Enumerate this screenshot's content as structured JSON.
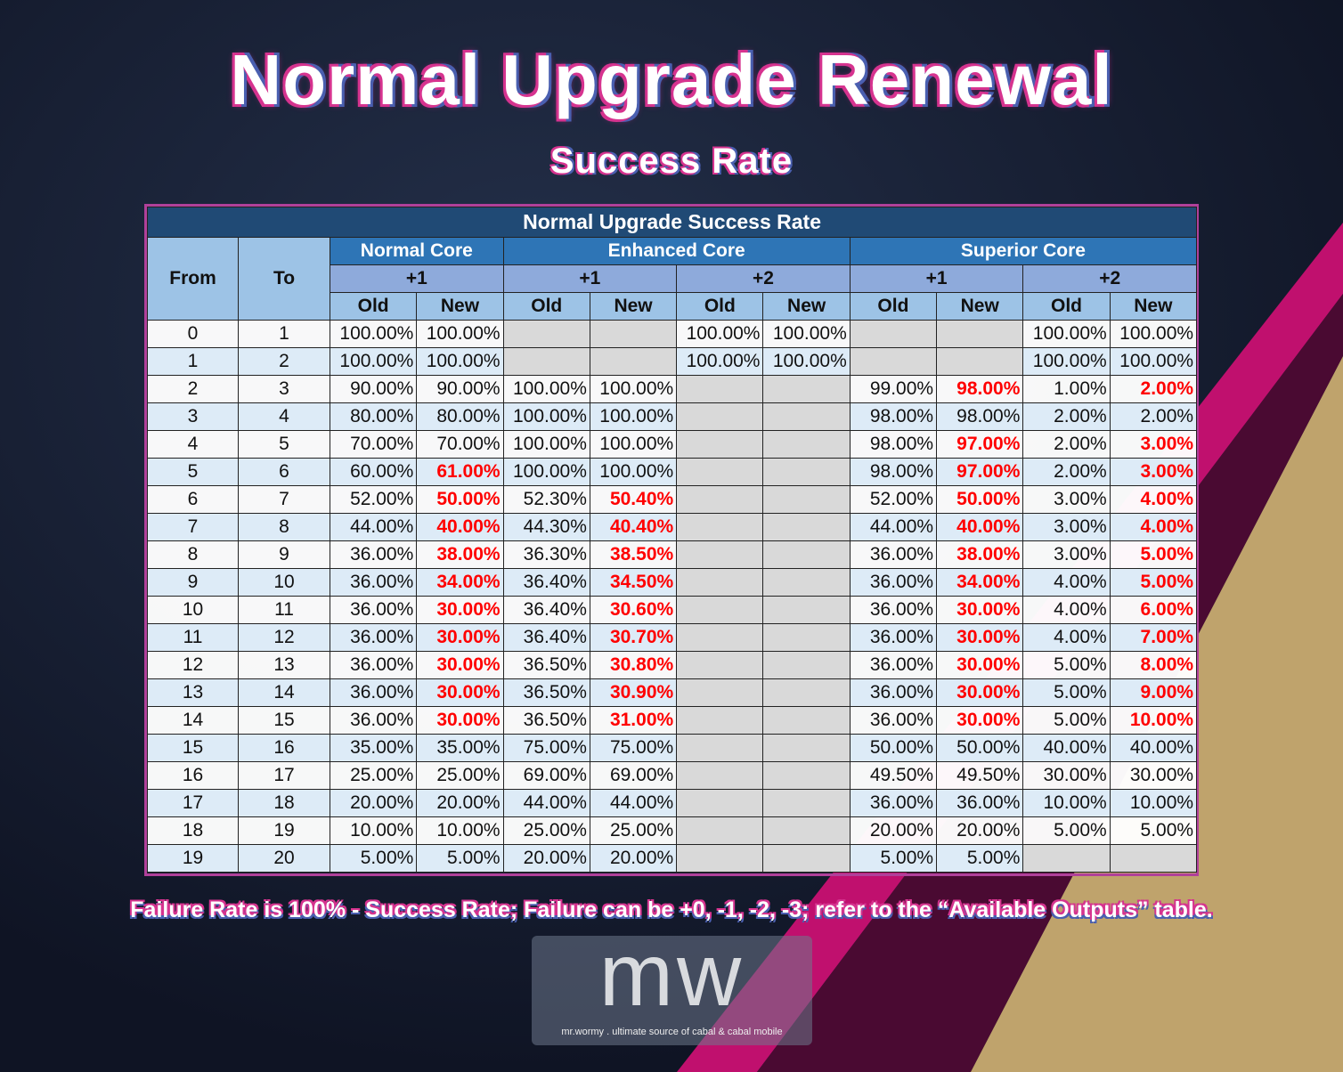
{
  "header": {
    "title": "Normal Upgrade Renewal",
    "subtitle": "Success Rate"
  },
  "table": {
    "title": "Normal Upgrade Success Rate",
    "col_from": "From",
    "col_to": "To",
    "cores": [
      "Normal Core",
      "Enhanced Core",
      "Superior Core"
    ],
    "levels": [
      "+1",
      "+1",
      "+2",
      "+1",
      "+2"
    ],
    "old_label": "Old",
    "new_label": "New",
    "rows": [
      {
        "from": "0",
        "to": "1",
        "cells": [
          [
            "100.00%",
            0
          ],
          [
            "100.00%",
            0
          ],
          null,
          null,
          [
            "100.00%",
            0
          ],
          [
            "100.00%",
            0
          ],
          null,
          null,
          [
            "100.00%",
            0
          ],
          [
            "100.00%",
            0
          ]
        ]
      },
      {
        "from": "1",
        "to": "2",
        "cells": [
          [
            "100.00%",
            0
          ],
          [
            "100.00%",
            0
          ],
          null,
          null,
          [
            "100.00%",
            0
          ],
          [
            "100.00%",
            0
          ],
          null,
          null,
          [
            "100.00%",
            0
          ],
          [
            "100.00%",
            0
          ]
        ]
      },
      {
        "from": "2",
        "to": "3",
        "cells": [
          [
            "90.00%",
            0
          ],
          [
            "90.00%",
            0
          ],
          [
            "100.00%",
            0
          ],
          [
            "100.00%",
            0
          ],
          null,
          null,
          [
            "99.00%",
            0
          ],
          [
            "98.00%",
            1
          ],
          [
            "1.00%",
            0
          ],
          [
            "2.00%",
            1
          ]
        ]
      },
      {
        "from": "3",
        "to": "4",
        "cells": [
          [
            "80.00%",
            0
          ],
          [
            "80.00%",
            0
          ],
          [
            "100.00%",
            0
          ],
          [
            "100.00%",
            0
          ],
          null,
          null,
          [
            "98.00%",
            0
          ],
          [
            "98.00%",
            0
          ],
          [
            "2.00%",
            0
          ],
          [
            "2.00%",
            0
          ]
        ]
      },
      {
        "from": "4",
        "to": "5",
        "cells": [
          [
            "70.00%",
            0
          ],
          [
            "70.00%",
            0
          ],
          [
            "100.00%",
            0
          ],
          [
            "100.00%",
            0
          ],
          null,
          null,
          [
            "98.00%",
            0
          ],
          [
            "97.00%",
            1
          ],
          [
            "2.00%",
            0
          ],
          [
            "3.00%",
            1
          ]
        ]
      },
      {
        "from": "5",
        "to": "6",
        "cells": [
          [
            "60.00%",
            0
          ],
          [
            "61.00%",
            1
          ],
          [
            "100.00%",
            0
          ],
          [
            "100.00%",
            0
          ],
          null,
          null,
          [
            "98.00%",
            0
          ],
          [
            "97.00%",
            1
          ],
          [
            "2.00%",
            0
          ],
          [
            "3.00%",
            1
          ]
        ]
      },
      {
        "from": "6",
        "to": "7",
        "cells": [
          [
            "52.00%",
            0
          ],
          [
            "50.00%",
            1
          ],
          [
            "52.30%",
            0
          ],
          [
            "50.40%",
            1
          ],
          null,
          null,
          [
            "52.00%",
            0
          ],
          [
            "50.00%",
            1
          ],
          [
            "3.00%",
            0
          ],
          [
            "4.00%",
            1
          ]
        ]
      },
      {
        "from": "7",
        "to": "8",
        "cells": [
          [
            "44.00%",
            0
          ],
          [
            "40.00%",
            1
          ],
          [
            "44.30%",
            0
          ],
          [
            "40.40%",
            1
          ],
          null,
          null,
          [
            "44.00%",
            0
          ],
          [
            "40.00%",
            1
          ],
          [
            "3.00%",
            0
          ],
          [
            "4.00%",
            1
          ]
        ]
      },
      {
        "from": "8",
        "to": "9",
        "cells": [
          [
            "36.00%",
            0
          ],
          [
            "38.00%",
            1
          ],
          [
            "36.30%",
            0
          ],
          [
            "38.50%",
            1
          ],
          null,
          null,
          [
            "36.00%",
            0
          ],
          [
            "38.00%",
            1
          ],
          [
            "3.00%",
            0
          ],
          [
            "5.00%",
            1
          ]
        ]
      },
      {
        "from": "9",
        "to": "10",
        "cells": [
          [
            "36.00%",
            0
          ],
          [
            "34.00%",
            1
          ],
          [
            "36.40%",
            0
          ],
          [
            "34.50%",
            1
          ],
          null,
          null,
          [
            "36.00%",
            0
          ],
          [
            "34.00%",
            1
          ],
          [
            "4.00%",
            0
          ],
          [
            "5.00%",
            1
          ]
        ]
      },
      {
        "from": "10",
        "to": "11",
        "cells": [
          [
            "36.00%",
            0
          ],
          [
            "30.00%",
            1
          ],
          [
            "36.40%",
            0
          ],
          [
            "30.60%",
            1
          ],
          null,
          null,
          [
            "36.00%",
            0
          ],
          [
            "30.00%",
            1
          ],
          [
            "4.00%",
            0
          ],
          [
            "6.00%",
            1
          ]
        ]
      },
      {
        "from": "11",
        "to": "12",
        "cells": [
          [
            "36.00%",
            0
          ],
          [
            "30.00%",
            1
          ],
          [
            "36.40%",
            0
          ],
          [
            "30.70%",
            1
          ],
          null,
          null,
          [
            "36.00%",
            0
          ],
          [
            "30.00%",
            1
          ],
          [
            "4.00%",
            0
          ],
          [
            "7.00%",
            1
          ]
        ]
      },
      {
        "from": "12",
        "to": "13",
        "cells": [
          [
            "36.00%",
            0
          ],
          [
            "30.00%",
            1
          ],
          [
            "36.50%",
            0
          ],
          [
            "30.80%",
            1
          ],
          null,
          null,
          [
            "36.00%",
            0
          ],
          [
            "30.00%",
            1
          ],
          [
            "5.00%",
            0
          ],
          [
            "8.00%",
            1
          ]
        ]
      },
      {
        "from": "13",
        "to": "14",
        "cells": [
          [
            "36.00%",
            0
          ],
          [
            "30.00%",
            1
          ],
          [
            "36.50%",
            0
          ],
          [
            "30.90%",
            1
          ],
          null,
          null,
          [
            "36.00%",
            0
          ],
          [
            "30.00%",
            1
          ],
          [
            "5.00%",
            0
          ],
          [
            "9.00%",
            1
          ]
        ]
      },
      {
        "from": "14",
        "to": "15",
        "cells": [
          [
            "36.00%",
            0
          ],
          [
            "30.00%",
            1
          ],
          [
            "36.50%",
            0
          ],
          [
            "31.00%",
            1
          ],
          null,
          null,
          [
            "36.00%",
            0
          ],
          [
            "30.00%",
            1
          ],
          [
            "5.00%",
            0
          ],
          [
            "10.00%",
            1
          ]
        ]
      },
      {
        "from": "15",
        "to": "16",
        "cells": [
          [
            "35.00%",
            0
          ],
          [
            "35.00%",
            0
          ],
          [
            "75.00%",
            0
          ],
          [
            "75.00%",
            0
          ],
          null,
          null,
          [
            "50.00%",
            0
          ],
          [
            "50.00%",
            0
          ],
          [
            "40.00%",
            0
          ],
          [
            "40.00%",
            0
          ]
        ]
      },
      {
        "from": "16",
        "to": "17",
        "cells": [
          [
            "25.00%",
            0
          ],
          [
            "25.00%",
            0
          ],
          [
            "69.00%",
            0
          ],
          [
            "69.00%",
            0
          ],
          null,
          null,
          [
            "49.50%",
            0
          ],
          [
            "49.50%",
            0
          ],
          [
            "30.00%",
            0
          ],
          [
            "30.00%",
            0
          ]
        ]
      },
      {
        "from": "17",
        "to": "18",
        "cells": [
          [
            "20.00%",
            0
          ],
          [
            "20.00%",
            0
          ],
          [
            "44.00%",
            0
          ],
          [
            "44.00%",
            0
          ],
          null,
          null,
          [
            "36.00%",
            0
          ],
          [
            "36.00%",
            0
          ],
          [
            "10.00%",
            0
          ],
          [
            "10.00%",
            0
          ]
        ]
      },
      {
        "from": "18",
        "to": "19",
        "cells": [
          [
            "10.00%",
            0
          ],
          [
            "10.00%",
            0
          ],
          [
            "25.00%",
            0
          ],
          [
            "25.00%",
            0
          ],
          null,
          null,
          [
            "20.00%",
            0
          ],
          [
            "20.00%",
            0
          ],
          [
            "5.00%",
            0
          ],
          [
            "5.00%",
            0
          ]
        ]
      },
      {
        "from": "19",
        "to": "20",
        "cells": [
          [
            "5.00%",
            0
          ],
          [
            "5.00%",
            0
          ],
          [
            "20.00%",
            0
          ],
          [
            "20.00%",
            0
          ],
          null,
          null,
          [
            "5.00%",
            0
          ],
          [
            "5.00%",
            0
          ],
          null,
          null
        ]
      }
    ]
  },
  "note": "Failure Rate is 100% - Success Rate; Failure can be +0, -1, -2, -3; refer to the “Available Outputs” table.",
  "logo": {
    "mark": "mw",
    "tagline": "mr.wormy . ultimate source of cabal & cabal mobile"
  },
  "colors": {
    "red": "#ff0000",
    "header_dark": "#204a75",
    "header_mid": "#2e75b6",
    "pink": "#c0106e",
    "gold": "#bfa36c"
  }
}
